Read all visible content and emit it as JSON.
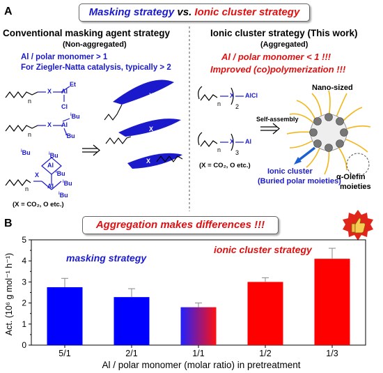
{
  "panel_a": {
    "letter": "A",
    "title_part1": "Masking strategy",
    "title_vs": " vs. ",
    "title_part2": "Ionic cluster strategy",
    "left_heading": "Conventional masking agent strategy",
    "left_sub": "(Non-aggregated)",
    "left_note1": "Al / polar monomer > 1",
    "left_note2": "For Ziegler-Natta catalysis, typically > 2",
    "left_condition": "(X = CO₂, O etc.)",
    "right_heading": "Ionic cluster strategy (This work)",
    "right_sub": "(Aggregated)",
    "right_note1": "Al / polar monomer < 1 !!!",
    "right_note2": "Improved (co)polymerization !!!",
    "right_condition": "(X = CO₂, O etc.)",
    "nano_label": "Nano-sized",
    "self_assembly": "Self-assembly",
    "ionic_cluster": "Ionic cluster",
    "buried": "(Buried polar moieties)",
    "olefin1": "α-Olefin",
    "olefin2": "moieties",
    "chem": {
      "X": "X",
      "n": "n",
      "Al": "Al",
      "Et": "Et",
      "Cl": "Cl",
      "iBu": "Bu",
      "i": "i",
      "AlCl": "AlCl",
      "sub2": "2",
      "sub3": "3"
    }
  },
  "panel_b": {
    "letter": "B",
    "title": "Aggregation makes differences !!!",
    "label_masking": "masking strategy",
    "label_ionic": "ionic cluster strategy"
  },
  "colors": {
    "blue": "#1a1acc",
    "red": "#e01010"
  },
  "chart_data": {
    "type": "bar",
    "categories": [
      "5/1",
      "2/1",
      "1/1",
      "1/2",
      "1/3"
    ],
    "values": [
      2.75,
      2.28,
      1.8,
      3.0,
      4.1
    ],
    "errors": [
      0.42,
      0.4,
      0.2,
      0.2,
      0.5
    ],
    "colors": [
      "#0000ff",
      "#0000ff",
      "gradient",
      "#ff0000",
      "#ff0000"
    ],
    "xlabel": "Al / polar monomer (molar ratio) in pretreatment",
    "ylabel": "Act. (10⁶ g mol⁻¹ h⁻¹)",
    "ylim": [
      0,
      5
    ],
    "yticks": [
      "0",
      "1",
      "2",
      "3",
      "4",
      "5"
    ]
  }
}
